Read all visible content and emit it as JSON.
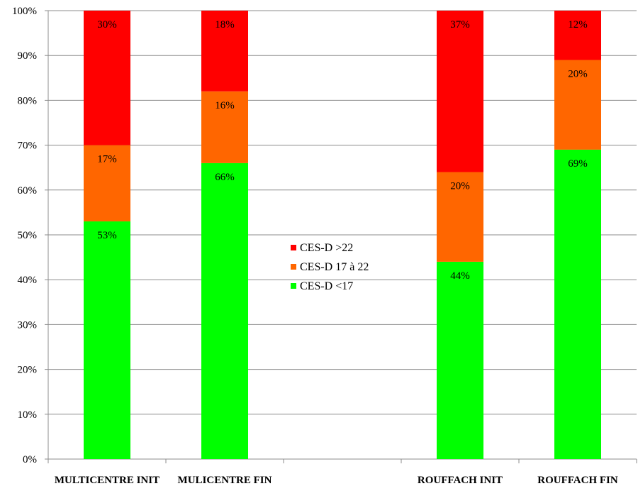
{
  "chart_data": {
    "type": "bar",
    "stacked": true,
    "normalized": true,
    "categories": [
      "MULTICENTRE INIT",
      "MULICENTRE FIN",
      "",
      "ROUFFACH INIT",
      "ROUFFACH FIN"
    ],
    "series": [
      {
        "name": "CES-D <17",
        "color": "#00ff00",
        "values": [
          53,
          66,
          null,
          44,
          69
        ],
        "labels": [
          "53%",
          "66%",
          "",
          "44%",
          "69%"
        ]
      },
      {
        "name": "CES-D 17 à 22",
        "color": "#ff6600",
        "values": [
          17,
          16,
          null,
          20,
          20
        ],
        "labels": [
          "17%",
          "16%",
          "",
          "20%",
          "20%"
        ]
      },
      {
        "name": "CES-D >22",
        "color": "#ff0000",
        "values": [
          30,
          18,
          null,
          37,
          12
        ],
        "labels": [
          "30%",
          "18%",
          "",
          "37%",
          "12%"
        ]
      }
    ],
    "legend_order": [
      "CES-D >22",
      "CES-D 17 à 22",
      "CES-D <17"
    ],
    "y_ticks": [
      "0%",
      "10%",
      "20%",
      "30%",
      "40%",
      "50%",
      "60%",
      "70%",
      "80%",
      "90%",
      "100%"
    ],
    "ylim": [
      0,
      100
    ],
    "grid": true,
    "legend_position": "center",
    "title": "",
    "xlabel": "",
    "ylabel": ""
  }
}
